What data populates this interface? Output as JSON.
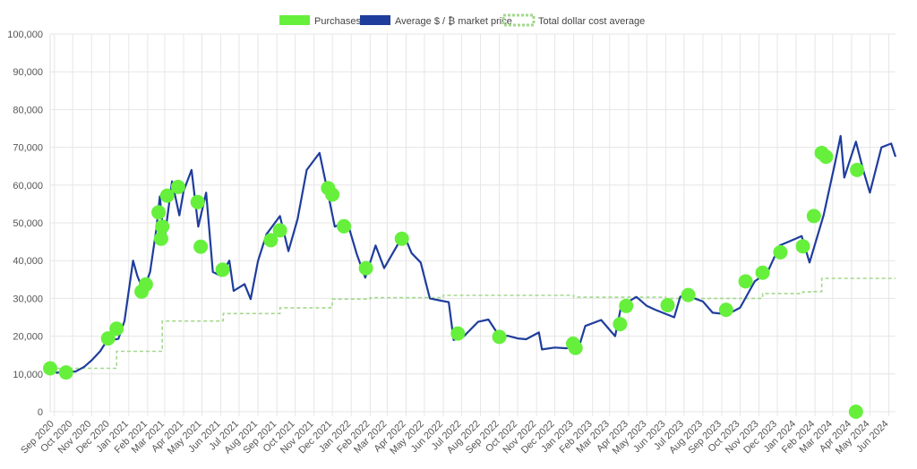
{
  "chart_data": {
    "type": "line",
    "legend": {
      "position": "top",
      "items": [
        {
          "label": "Purchases",
          "color": "#66f03c",
          "style": "filled"
        },
        {
          "label": "Average $ / ₿ market price",
          "color": "#1f3d9c",
          "style": "filled"
        },
        {
          "label": "Total dollar cost average",
          "color": "#a3d98c",
          "style": "dashed"
        }
      ]
    },
    "y_axis": {
      "min": 0,
      "max": 100000,
      "ticks": [
        "0",
        "10,000",
        "20,000",
        "30,000",
        "40,000",
        "50,000",
        "60,000",
        "70,000",
        "80,000",
        "90,000",
        "100,000"
      ]
    },
    "x_axis": {
      "start": "2020-08-25",
      "end": "2024-06-12",
      "ticks": [
        {
          "date": "2020-09-01",
          "label": "Sep 2020"
        },
        {
          "date": "2020-10-01",
          "label": "Oct 2020"
        },
        {
          "date": "2020-11-01",
          "label": "Nov 2020"
        },
        {
          "date": "2020-12-01",
          "label": "Dec 2020"
        },
        {
          "date": "2021-01-01",
          "label": "Jan 2021"
        },
        {
          "date": "2021-02-01",
          "label": "Feb 2021"
        },
        {
          "date": "2021-03-01",
          "label": "Mar 2021"
        },
        {
          "date": "2021-04-01",
          "label": "Apr 2021"
        },
        {
          "date": "2021-05-01",
          "label": "May 2021"
        },
        {
          "date": "2021-06-01",
          "label": "Jun 2021"
        },
        {
          "date": "2021-07-01",
          "label": "Jul 2021"
        },
        {
          "date": "2021-08-01",
          "label": "Aug 2021"
        },
        {
          "date": "2021-09-01",
          "label": "Sep 2021"
        },
        {
          "date": "2021-10-01",
          "label": "Oct 2021"
        },
        {
          "date": "2021-11-01",
          "label": "Nov 2021"
        },
        {
          "date": "2021-12-01",
          "label": "Dec 2021"
        },
        {
          "date": "2022-01-01",
          "label": "Jan 2022"
        },
        {
          "date": "2022-02-01",
          "label": "Feb 2022"
        },
        {
          "date": "2022-03-01",
          "label": "Mar 2022"
        },
        {
          "date": "2022-04-01",
          "label": "Apr 2022"
        },
        {
          "date": "2022-05-01",
          "label": "May 2022"
        },
        {
          "date": "2022-06-01",
          "label": "Jun 2022"
        },
        {
          "date": "2022-07-01",
          "label": "Jul 2022"
        },
        {
          "date": "2022-08-01",
          "label": "Aug 2022"
        },
        {
          "date": "2022-09-01",
          "label": "Sep 2022"
        },
        {
          "date": "2022-10-01",
          "label": "Oct 2022"
        },
        {
          "date": "2022-11-01",
          "label": "Nov 2022"
        },
        {
          "date": "2022-12-01",
          "label": "Dec 2022"
        },
        {
          "date": "2023-01-01",
          "label": "Jan 2023"
        },
        {
          "date": "2023-02-01",
          "label": "Feb 2023"
        },
        {
          "date": "2023-03-01",
          "label": "Mar 2023"
        },
        {
          "date": "2023-04-01",
          "label": "Apr 2023"
        },
        {
          "date": "2023-05-01",
          "label": "May 2023"
        },
        {
          "date": "2023-06-01",
          "label": "Jun 2023"
        },
        {
          "date": "2023-07-01",
          "label": "Jul 2023"
        },
        {
          "date": "2023-08-01",
          "label": "Aug 2023"
        },
        {
          "date": "2023-09-01",
          "label": "Sep 2023"
        },
        {
          "date": "2023-10-01",
          "label": "Oct 2023"
        },
        {
          "date": "2023-11-01",
          "label": "Nov 2023"
        },
        {
          "date": "2023-12-01",
          "label": "Dec 2023"
        },
        {
          "date": "2024-01-01",
          "label": "Jan 2024"
        },
        {
          "date": "2024-02-01",
          "label": "Feb 2024"
        },
        {
          "date": "2024-03-01",
          "label": "Mar 2024"
        },
        {
          "date": "2024-04-01",
          "label": "Apr 2024"
        },
        {
          "date": "2024-05-01",
          "label": "May 2024"
        },
        {
          "date": "2024-06-01",
          "label": "Jun 2024"
        }
      ]
    },
    "grid": true,
    "series": [
      {
        "name": "Average $ / ₿ market price",
        "type": "line",
        "color": "#1f3d9c",
        "points": [
          [
            "2020-08-25",
            11600
          ],
          [
            "2020-09-05",
            10300
          ],
          [
            "2020-09-20",
            10800
          ],
          [
            "2020-10-05",
            10600
          ],
          [
            "2020-10-20",
            11900
          ],
          [
            "2020-11-01",
            13600
          ],
          [
            "2020-11-15",
            16000
          ],
          [
            "2020-11-25",
            18500
          ],
          [
            "2020-12-05",
            19000
          ],
          [
            "2020-12-15",
            19300
          ],
          [
            "2020-12-25",
            24000
          ],
          [
            "2021-01-08",
            40000
          ],
          [
            "2021-01-15",
            36000
          ],
          [
            "2021-01-25",
            32000
          ],
          [
            "2021-02-05",
            37000
          ],
          [
            "2021-02-15",
            48000
          ],
          [
            "2021-02-21",
            57000
          ],
          [
            "2021-02-28",
            45000
          ],
          [
            "2021-03-13",
            61000
          ],
          [
            "2021-03-25",
            52000
          ],
          [
            "2021-04-01",
            58500
          ],
          [
            "2021-04-14",
            64000
          ],
          [
            "2021-04-25",
            49000
          ],
          [
            "2021-05-08",
            58000
          ],
          [
            "2021-05-19",
            37000
          ],
          [
            "2021-06-01",
            36000
          ],
          [
            "2021-06-15",
            40000
          ],
          [
            "2021-06-22",
            32000
          ],
          [
            "2021-07-10",
            33800
          ],
          [
            "2021-07-20",
            29800
          ],
          [
            "2021-08-01",
            39900
          ],
          [
            "2021-08-15",
            47000
          ],
          [
            "2021-09-06",
            51800
          ],
          [
            "2021-09-20",
            42500
          ],
          [
            "2021-10-05",
            51000
          ],
          [
            "2021-10-20",
            64000
          ],
          [
            "2021-11-10",
            68500
          ],
          [
            "2021-11-25",
            57000
          ],
          [
            "2021-12-05",
            49000
          ],
          [
            "2021-12-25",
            50500
          ],
          [
            "2022-01-10",
            41800
          ],
          [
            "2022-01-24",
            35500
          ],
          [
            "2022-02-10",
            44000
          ],
          [
            "2022-02-24",
            38000
          ],
          [
            "2022-03-28",
            47000
          ],
          [
            "2022-04-10",
            42000
          ],
          [
            "2022-04-25",
            39500
          ],
          [
            "2022-05-10",
            30000
          ],
          [
            "2022-05-25",
            29500
          ],
          [
            "2022-06-10",
            29000
          ],
          [
            "2022-06-18",
            19000
          ],
          [
            "2022-07-05",
            20000
          ],
          [
            "2022-07-28",
            23800
          ],
          [
            "2022-08-14",
            24400
          ],
          [
            "2022-09-01",
            20000
          ],
          [
            "2022-09-15",
            20100
          ],
          [
            "2022-10-01",
            19400
          ],
          [
            "2022-10-15",
            19200
          ],
          [
            "2022-11-05",
            21000
          ],
          [
            "2022-11-10",
            16500
          ],
          [
            "2022-12-01",
            17000
          ],
          [
            "2022-12-20",
            16800
          ],
          [
            "2023-01-10",
            17400
          ],
          [
            "2023-01-20",
            22700
          ],
          [
            "2023-02-15",
            24300
          ],
          [
            "2023-03-10",
            20000
          ],
          [
            "2023-03-20",
            28000
          ],
          [
            "2023-04-14",
            30400
          ],
          [
            "2023-05-01",
            28000
          ],
          [
            "2023-05-15",
            27000
          ],
          [
            "2023-06-15",
            25000
          ],
          [
            "2023-06-25",
            30500
          ],
          [
            "2023-07-15",
            30200
          ],
          [
            "2023-08-01",
            29200
          ],
          [
            "2023-08-17",
            26200
          ],
          [
            "2023-09-10",
            25800
          ],
          [
            "2023-10-01",
            27500
          ],
          [
            "2023-10-25",
            34500
          ],
          [
            "2023-11-15",
            37000
          ],
          [
            "2023-12-05",
            44000
          ],
          [
            "2024-01-10",
            46500
          ],
          [
            "2024-01-23",
            39500
          ],
          [
            "2024-02-15",
            52000
          ],
          [
            "2024-03-05",
            66000
          ],
          [
            "2024-03-14",
            73000
          ],
          [
            "2024-03-20",
            62000
          ],
          [
            "2024-04-08",
            71500
          ],
          [
            "2024-04-20",
            64000
          ],
          [
            "2024-05-01",
            58000
          ],
          [
            "2024-05-20",
            70000
          ],
          [
            "2024-06-05",
            71000
          ],
          [
            "2024-06-12",
            67500
          ]
        ]
      },
      {
        "name": "Purchases",
        "type": "scatter",
        "color": "#66f03c",
        "points": [
          [
            "2020-08-25",
            11500
          ],
          [
            "2020-09-20",
            10400
          ],
          [
            "2020-11-28",
            19400
          ],
          [
            "2020-12-12",
            22000
          ],
          [
            "2021-01-22",
            31800
          ],
          [
            "2021-01-29",
            33700
          ],
          [
            "2021-02-19",
            52800
          ],
          [
            "2021-02-23",
            45800
          ],
          [
            "2021-02-25",
            49000
          ],
          [
            "2021-03-05",
            57200
          ],
          [
            "2021-03-23",
            59500
          ],
          [
            "2021-04-24",
            55500
          ],
          [
            "2021-04-29",
            43700
          ],
          [
            "2021-06-04",
            37600
          ],
          [
            "2021-08-22",
            45400
          ],
          [
            "2021-09-06",
            48000
          ],
          [
            "2021-11-24",
            59200
          ],
          [
            "2021-12-01",
            57500
          ],
          [
            "2021-12-20",
            49100
          ],
          [
            "2022-01-25",
            38000
          ],
          [
            "2022-03-25",
            45800
          ],
          [
            "2022-06-25",
            20700
          ],
          [
            "2022-09-01",
            19800
          ],
          [
            "2022-12-31",
            18000
          ],
          [
            "2023-01-04",
            16900
          ],
          [
            "2023-03-18",
            23200
          ],
          [
            "2023-03-28",
            28000
          ],
          [
            "2023-06-04",
            28200
          ],
          [
            "2023-07-08",
            30900
          ],
          [
            "2023-09-08",
            27000
          ],
          [
            "2023-10-10",
            34500
          ],
          [
            "2023-11-07",
            36800
          ],
          [
            "2023-12-06",
            42200
          ],
          [
            "2024-01-12",
            43800
          ],
          [
            "2024-01-30",
            51800
          ],
          [
            "2024-02-12",
            68500
          ],
          [
            "2024-02-19",
            67500
          ],
          [
            "2024-04-08",
            0
          ],
          [
            "2024-04-10",
            64000
          ]
        ]
      },
      {
        "name": "Total dollar cost average",
        "type": "step-line",
        "color": "#a3d98c",
        "points": [
          [
            "2020-08-25",
            11500
          ],
          [
            "2020-11-28",
            11500
          ],
          [
            "2020-12-05",
            11500
          ],
          [
            "2020-12-12",
            16000
          ],
          [
            "2021-02-19",
            16000
          ],
          [
            "2021-02-25",
            24000
          ],
          [
            "2021-06-04",
            24200
          ],
          [
            "2021-06-05",
            26000
          ],
          [
            "2021-09-06",
            27500
          ],
          [
            "2021-11-28",
            27600
          ],
          [
            "2021-12-01",
            29800
          ],
          [
            "2022-02-01",
            30200
          ],
          [
            "2022-06-01",
            30800
          ],
          [
            "2023-01-01",
            30300
          ],
          [
            "2023-06-01",
            30000
          ],
          [
            "2023-10-10",
            30000
          ],
          [
            "2023-11-07",
            31300
          ],
          [
            "2024-01-12",
            31700
          ],
          [
            "2024-01-30",
            31800
          ],
          [
            "2024-02-12",
            35300
          ],
          [
            "2024-06-12",
            35300
          ]
        ]
      }
    ]
  }
}
